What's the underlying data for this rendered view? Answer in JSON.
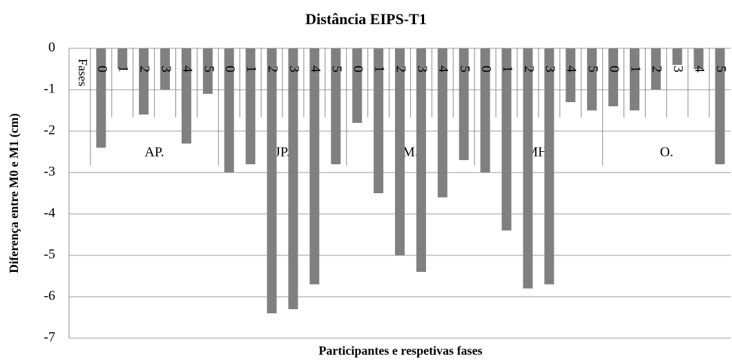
{
  "chart_data": {
    "type": "bar",
    "title": "Distância EIPS-T1",
    "y_label": "Diferença entre M0 e M1 (cm)",
    "x_label": "Participantes e respetivas fases",
    "category_axis_title": "Fases",
    "groups": [
      "AP.",
      "JP.",
      "M.",
      "MH.",
      "O."
    ],
    "categories": [
      "0",
      "1",
      "2",
      "3",
      "4",
      "5",
      "0",
      "1",
      "2",
      "3",
      "4",
      "5",
      "0",
      "1",
      "2",
      "3",
      "4",
      "5",
      "0",
      "1",
      "2",
      "3",
      "4",
      "5",
      "0",
      "1",
      "2",
      "3",
      "4",
      "5"
    ],
    "series": [
      {
        "color": "#808080",
        "values": [
          -2.4,
          -0.5,
          -1.6,
          -1.0,
          -2.3,
          -1.1,
          -3.0,
          -2.8,
          -6.4,
          -6.3,
          -5.7,
          -2.8,
          -1.8,
          -3.5,
          -5.0,
          -5.4,
          -3.6,
          -2.7,
          -3.0,
          -4.4,
          -5.8,
          -5.7,
          -1.3,
          -1.5,
          -1.4,
          -1.5,
          -1.0,
          -0.4,
          -0.5,
          -2.8
        ]
      }
    ],
    "ylim": [
      -7,
      0
    ],
    "yticks": [
      0,
      -1,
      -2,
      -3,
      -4,
      -5,
      -6,
      -7
    ],
    "grid": true
  }
}
